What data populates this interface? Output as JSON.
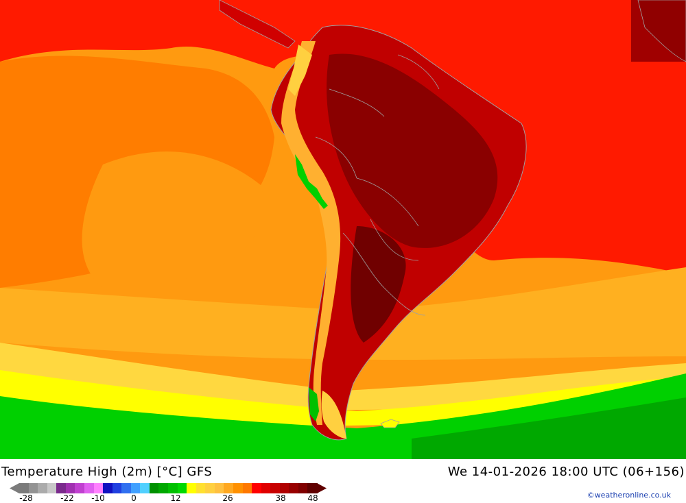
{
  "title": "Temperature High (2m) [°C] GFS",
  "datetime": "We 14-01-2026 18:00 UTC (06+156)",
  "credit": "©weatheronline.co.uk",
  "legend": {
    "ticks": [
      "-28",
      "-22",
      "-10",
      "0",
      "12",
      "26",
      "38",
      "48"
    ],
    "colors": [
      "#7b7b7b",
      "#939393",
      "#ababab",
      "#c8c8c8",
      "#7a2a8c",
      "#a030b0",
      "#c040d0",
      "#e060f0",
      "#ff80ff",
      "#1010c0",
      "#2040e0",
      "#3070f0",
      "#40a0ff",
      "#50d0ff",
      "#009000",
      "#00a800",
      "#00c000",
      "#00d800",
      "#ffff00",
      "#ffe030",
      "#ffd040",
      "#ffc040",
      "#ffa820",
      "#ff9000",
      "#ff7800",
      "#ff0000",
      "#e00000",
      "#c80000",
      "#b00000",
      "#980000",
      "#800000",
      "#600000"
    ]
  },
  "colors": {
    "cold": "#00c000",
    "cool": "#00e000",
    "yellow": "#ffff00",
    "warm": "#ffa820",
    "orange": "#ff8c00",
    "hot": "#ff1a00",
    "veryhot": "#c00000",
    "extreme": "#8a0000",
    "border": "#a0a0a0"
  }
}
